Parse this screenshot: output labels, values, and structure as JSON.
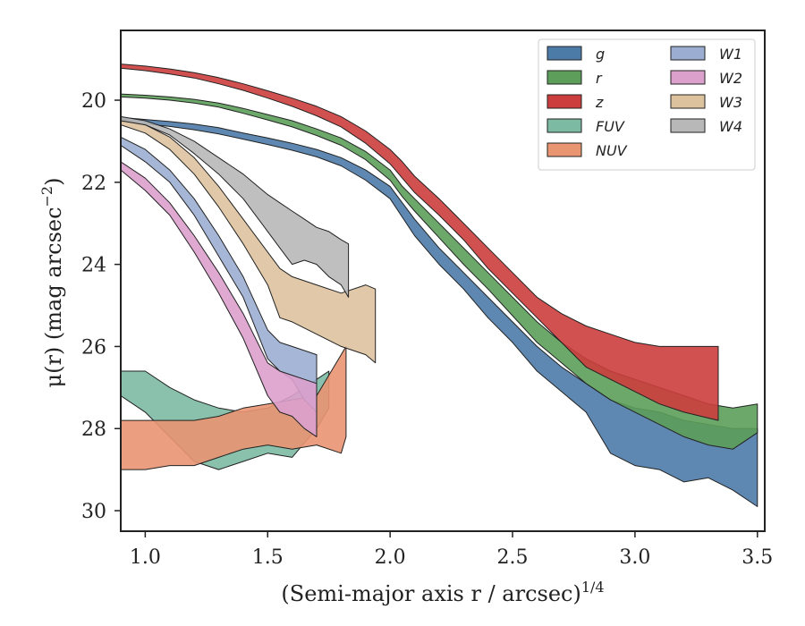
{
  "chart_data": {
    "type": "area",
    "title": "",
    "xlabel_main": "(Semi-major axis r / arcsec)",
    "xlabel_sup": "1/4",
    "ylabel_main": "μ(r) (mag arcsec",
    "ylabel_sup": "−2",
    "ylabel_close": ")",
    "xlim": [
      0.9,
      3.53
    ],
    "ylim": [
      30.5,
      18.3
    ],
    "y_inverted": true,
    "xticks": [
      1.0,
      1.5,
      2.0,
      2.5,
      3.0,
      3.5
    ],
    "xtick_labels": [
      "1.0",
      "1.5",
      "2.0",
      "2.5",
      "3.0",
      "3.5"
    ],
    "yticks": [
      20,
      22,
      24,
      26,
      28,
      30
    ],
    "ytick_labels": [
      "20",
      "22",
      "24",
      "26",
      "28",
      "30"
    ],
    "grid": false,
    "legend_position": "top-right",
    "legend_columns": 2,
    "series": [
      {
        "name": "g",
        "color": "#4c7ba8",
        "x": [
          0.9,
          1.0,
          1.1,
          1.2,
          1.3,
          1.4,
          1.5,
          1.6,
          1.7,
          1.8,
          1.9,
          2.0,
          2.05,
          2.1,
          2.2,
          2.3,
          2.4,
          2.5,
          2.6,
          2.7,
          2.8,
          2.9,
          3.0,
          3.1,
          3.2,
          3.3,
          3.4,
          3.5
        ],
        "lo": [
          20.42,
          20.47,
          20.52,
          20.58,
          20.67,
          20.8,
          20.92,
          21.05,
          21.2,
          21.4,
          21.7,
          22.1,
          22.5,
          22.9,
          23.6,
          24.2,
          24.8,
          25.4,
          26.0,
          26.5,
          26.9,
          27.3,
          27.5,
          27.6,
          27.8,
          27.9,
          28.0,
          28.0
        ],
        "hi": [
          20.52,
          20.58,
          20.64,
          20.72,
          20.82,
          20.95,
          21.08,
          21.22,
          21.38,
          21.6,
          21.95,
          22.4,
          22.85,
          23.3,
          24.0,
          24.6,
          25.3,
          25.9,
          26.6,
          27.1,
          27.6,
          28.6,
          28.9,
          29.0,
          29.3,
          29.2,
          29.5,
          29.9
        ]
      },
      {
        "name": "r",
        "color": "#5c9e5a",
        "x": [
          0.9,
          1.0,
          1.1,
          1.2,
          1.3,
          1.4,
          1.5,
          1.6,
          1.7,
          1.8,
          1.9,
          2.0,
          2.05,
          2.1,
          2.2,
          2.3,
          2.4,
          2.5,
          2.6,
          2.7,
          2.8,
          2.9,
          3.0,
          3.1,
          3.2,
          3.3,
          3.4,
          3.5
        ],
        "lo": [
          19.85,
          19.88,
          19.92,
          19.98,
          20.07,
          20.2,
          20.35,
          20.5,
          20.7,
          20.92,
          21.25,
          21.7,
          22.1,
          22.4,
          23.0,
          23.6,
          24.2,
          24.8,
          25.4,
          25.9,
          26.3,
          26.6,
          26.8,
          27.0,
          27.2,
          27.4,
          27.5,
          27.4
        ],
        "hi": [
          19.92,
          19.95,
          20.0,
          20.07,
          20.17,
          20.32,
          20.48,
          20.65,
          20.86,
          21.1,
          21.45,
          21.95,
          22.35,
          22.7,
          23.35,
          24.0,
          24.6,
          25.25,
          25.9,
          26.4,
          26.9,
          27.3,
          27.6,
          27.9,
          28.2,
          28.4,
          28.5,
          28.1
        ]
      },
      {
        "name": "z",
        "color": "#cc3d3d",
        "x": [
          0.9,
          1.0,
          1.1,
          1.2,
          1.3,
          1.4,
          1.5,
          1.6,
          1.7,
          1.8,
          1.9,
          2.0,
          2.05,
          2.1,
          2.2,
          2.3,
          2.4,
          2.5,
          2.6,
          2.7,
          2.8,
          2.9,
          3.0,
          3.1,
          3.2,
          3.34
        ],
        "lo": [
          19.12,
          19.17,
          19.24,
          19.33,
          19.45,
          19.6,
          19.77,
          19.95,
          20.15,
          20.4,
          20.75,
          21.2,
          21.5,
          21.85,
          22.4,
          23.0,
          23.6,
          24.2,
          24.8,
          25.2,
          25.5,
          25.7,
          25.9,
          26.0,
          26.0,
          26.0
        ],
        "hi": [
          19.22,
          19.28,
          19.36,
          19.46,
          19.6,
          19.76,
          19.95,
          20.15,
          20.38,
          20.65,
          21.05,
          21.55,
          21.9,
          22.25,
          22.8,
          23.4,
          24.1,
          24.7,
          25.3,
          25.9,
          26.5,
          26.8,
          27.1,
          27.4,
          27.6,
          27.8
        ]
      },
      {
        "name": "FUV",
        "color": "#7cbaa3",
        "x": [
          0.9,
          1.0,
          1.1,
          1.2,
          1.3,
          1.4,
          1.5,
          1.6,
          1.7,
          1.75
        ],
        "lo": [
          26.6,
          26.6,
          27.0,
          27.3,
          27.5,
          27.6,
          27.5,
          27.2,
          26.8,
          26.6
        ],
        "hi": [
          27.2,
          27.6,
          28.2,
          28.8,
          29.0,
          28.8,
          28.6,
          28.7,
          28.0,
          27.5
        ]
      },
      {
        "name": "NUV",
        "color": "#ea9572",
        "x": [
          0.9,
          1.0,
          1.1,
          1.2,
          1.3,
          1.4,
          1.5,
          1.6,
          1.7,
          1.8,
          1.82
        ],
        "lo": [
          27.8,
          27.8,
          27.8,
          27.8,
          27.7,
          27.5,
          27.4,
          27.3,
          27.2,
          26.2,
          26.0
        ],
        "hi": [
          29.0,
          29.0,
          28.9,
          28.9,
          28.7,
          28.5,
          28.4,
          28.5,
          28.4,
          28.6,
          28.2
        ]
      },
      {
        "name": "W1",
        "color": "#9baed1",
        "x": [
          0.9,
          1.0,
          1.1,
          1.2,
          1.3,
          1.4,
          1.5,
          1.55,
          1.6,
          1.65,
          1.7
        ],
        "lo": [
          20.9,
          21.2,
          21.7,
          22.4,
          23.3,
          24.3,
          25.6,
          25.9,
          26.0,
          26.1,
          26.2
        ],
        "hi": [
          21.1,
          21.5,
          22.0,
          22.8,
          23.8,
          24.8,
          26.3,
          26.6,
          26.8,
          27.3,
          27.6
        ]
      },
      {
        "name": "W2",
        "color": "#dca0cd",
        "x": [
          0.9,
          1.0,
          1.1,
          1.2,
          1.3,
          1.4,
          1.5,
          1.55,
          1.6,
          1.65,
          1.7
        ],
        "lo": [
          21.5,
          21.9,
          22.5,
          23.3,
          24.2,
          25.2,
          26.4,
          26.6,
          26.7,
          26.8,
          26.9
        ],
        "hi": [
          21.7,
          22.2,
          22.8,
          23.7,
          24.7,
          25.8,
          27.2,
          27.6,
          27.7,
          28.0,
          28.2
        ]
      },
      {
        "name": "W3",
        "color": "#ddc29e",
        "x": [
          0.9,
          1.0,
          1.1,
          1.2,
          1.3,
          1.4,
          1.5,
          1.55,
          1.6,
          1.7,
          1.8,
          1.9,
          1.94
        ],
        "lo": [
          20.45,
          20.6,
          20.9,
          21.4,
          22.1,
          22.9,
          23.7,
          24.1,
          24.3,
          24.5,
          24.7,
          24.5,
          24.6
        ],
        "hi": [
          20.6,
          20.8,
          21.2,
          21.8,
          22.6,
          23.5,
          24.5,
          25.3,
          25.4,
          25.7,
          26.0,
          26.2,
          26.4
        ]
      },
      {
        "name": "W4",
        "color": "#b8b8b8",
        "x": [
          0.9,
          1.0,
          1.1,
          1.2,
          1.3,
          1.4,
          1.5,
          1.55,
          1.6,
          1.65,
          1.7,
          1.75,
          1.8,
          1.83
        ],
        "lo": [
          20.4,
          20.5,
          20.7,
          21.0,
          21.4,
          21.8,
          22.3,
          22.5,
          22.7,
          22.9,
          23.1,
          23.2,
          23.4,
          23.5
        ],
        "hi": [
          20.5,
          20.6,
          20.85,
          21.3,
          21.8,
          22.4,
          23.2,
          23.6,
          24.0,
          23.9,
          24.0,
          24.3,
          24.5,
          24.8
        ]
      }
    ]
  }
}
